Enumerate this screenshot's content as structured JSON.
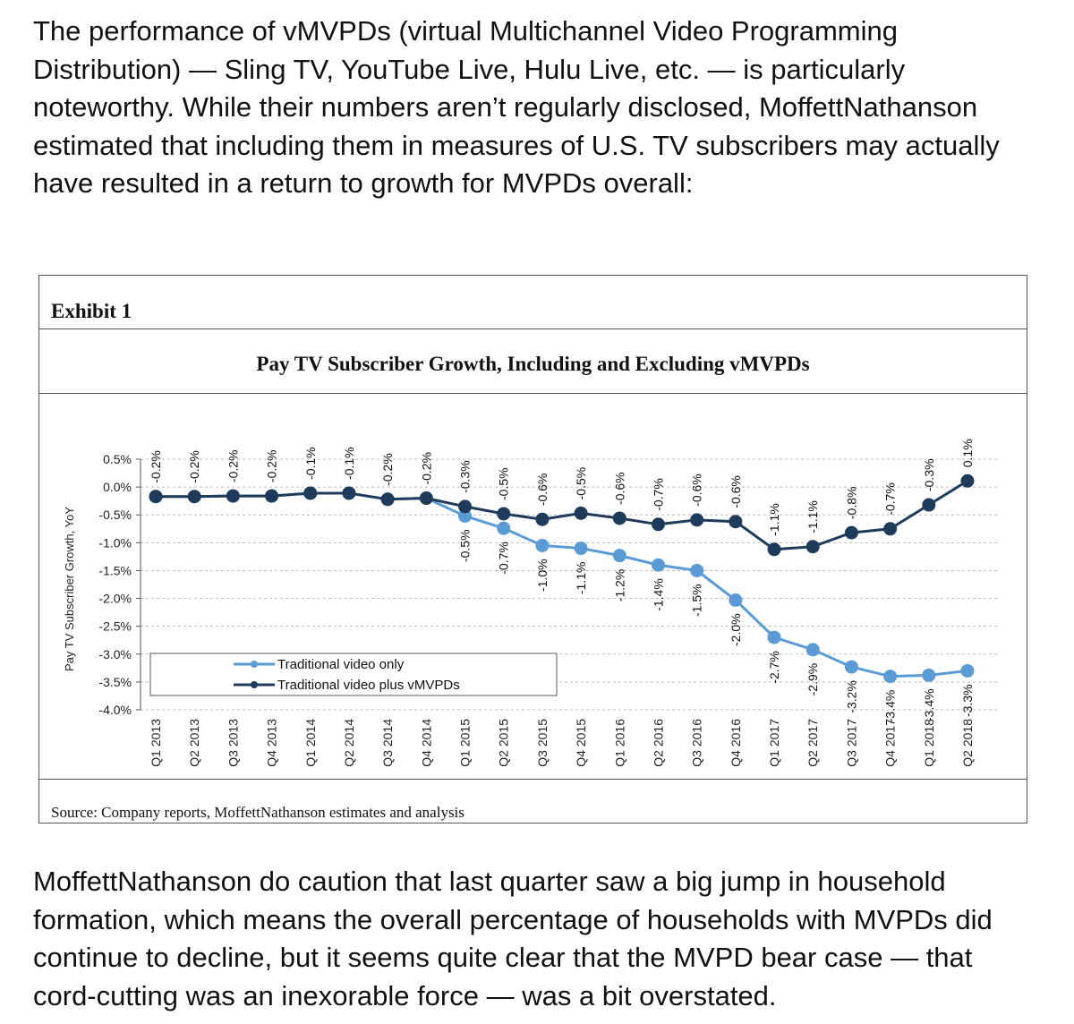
{
  "intro_text": "The performance of vMVPDs (virtual Multichannel Video Programming Distribution) — Sling TV, YouTube Live, Hulu Live, etc. — is particularly noteworthy. While their numbers aren’t regularly disclosed, MoffettNathanson estimated that including them in measures of U.S. TV subscribers may actually have resulted in a return to growth for MVPDs overall:",
  "exhibit": {
    "label": "Exhibit 1",
    "source": "Source: Company reports, MoffettNathanson estimates and analysis"
  },
  "outro_text": "MoffettNathanson do caution that last quarter saw a big jump in household formation, which means the overall percentage of households with MVPDs did continue to decline, but it seems quite clear that the MVPD bear case — that cord-cutting was an inexorable force — was a bit overstated.",
  "colors": {
    "traditional": "#5b9bd5",
    "plus_vmvpd": "#1f3b5c"
  },
  "chart_data": {
    "type": "line",
    "title": "Pay TV Subscriber Growth, Including and Excluding vMVPDs",
    "xlabel": "",
    "ylabel": "Pay TV Subscriber Growth, YoY",
    "ylim": [
      -4.0,
      0.5
    ],
    "yticks": [
      "0.5%",
      "0.0%",
      "-0.5%",
      "-1.0%",
      "-1.5%",
      "-2.0%",
      "-2.5%",
      "-3.0%",
      "-3.5%",
      "-4.0%"
    ],
    "ytick_values": [
      0.5,
      0.0,
      -0.5,
      -1.0,
      -1.5,
      -2.0,
      -2.5,
      -3.0,
      -3.5,
      -4.0
    ],
    "grid": true,
    "legend": "bottom-left",
    "categories": [
      "Q1 2013",
      "Q2 2013",
      "Q3 2013",
      "Q4 2013",
      "Q1 2014",
      "Q2 2014",
      "Q3 2014",
      "Q4 2014",
      "Q1 2015",
      "Q2 2015",
      "Q3 2015",
      "Q4 2015",
      "Q1 2016",
      "Q2 2016",
      "Q3 2016",
      "Q4 2016",
      "Q1 2017",
      "Q2 2017",
      "Q3 2017",
      "Q4 2017",
      "Q1 2018",
      "Q2 2018"
    ],
    "series": [
      {
        "name": "Traditional video only",
        "values": [
          -0.17,
          -0.17,
          -0.16,
          -0.16,
          -0.11,
          -0.11,
          -0.22,
          -0.2,
          -0.52,
          -0.74,
          -1.05,
          -1.1,
          -1.23,
          -1.4,
          -1.5,
          -2.03,
          -2.7,
          -2.92,
          -3.23,
          -3.4,
          -3.38,
          -3.3
        ],
        "labels": [
          "",
          "",
          "",
          "",
          "",
          "",
          "",
          "",
          "-0.5%",
          "-0.7%",
          "-1.0%",
          "-1.1%",
          "-1.2%",
          "-1.4%",
          "-1.5%",
          "-2.0%",
          "-2.7%",
          "-2.9%",
          "-3.2%",
          "-3.4%",
          "-3.4%",
          "-3.3%"
        ]
      },
      {
        "name": "Traditional video plus vMVPDs",
        "values": [
          -0.17,
          -0.17,
          -0.16,
          -0.16,
          -0.11,
          -0.11,
          -0.22,
          -0.2,
          -0.35,
          -0.48,
          -0.58,
          -0.47,
          -0.56,
          -0.67,
          -0.59,
          -0.62,
          -1.12,
          -1.07,
          -0.82,
          -0.75,
          -0.32,
          0.11
        ],
        "labels": [
          "-0.2%",
          "-0.2%",
          "-0.2%",
          "-0.2%",
          "-0.1%",
          "-0.1%",
          "-0.2%",
          "-0.2%",
          "-0.3%",
          "-0.5%",
          "-0.6%",
          "-0.5%",
          "-0.6%",
          "-0.7%",
          "-0.6%",
          "-0.6%",
          "-1.1%",
          "-1.1%",
          "-0.8%",
          "-0.7%",
          "-0.3%",
          "0.1%"
        ]
      }
    ]
  }
}
